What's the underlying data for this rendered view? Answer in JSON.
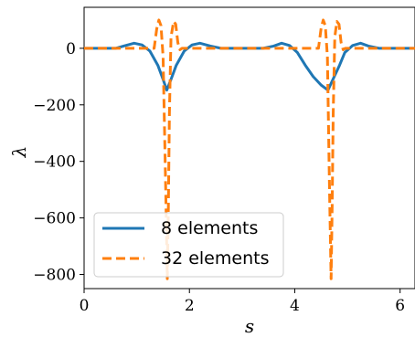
{
  "chart_data": {
    "type": "line",
    "xlabel": "s",
    "ylabel": "λ",
    "xlim": [
      0,
      6.283
    ],
    "ylim": [
      -850,
      145
    ],
    "x_ticks": [
      0,
      2,
      4,
      6
    ],
    "x_tick_labels": [
      "0",
      "2",
      "4",
      "6"
    ],
    "y_ticks": [
      0,
      -200,
      -400,
      -600,
      -800
    ],
    "y_tick_labels": [
      "0",
      "−200",
      "−400",
      "−600",
      "−800"
    ],
    "grid": false,
    "legend_position": "lower-left",
    "series": [
      {
        "name": "8 elements",
        "color": "#1f77b4",
        "style": "solid",
        "x": [
          0,
          0.6,
          0.75,
          0.95,
          1.1,
          1.25,
          1.4,
          1.5,
          1.57,
          1.65,
          1.75,
          1.9,
          2.05,
          2.2,
          2.4,
          2.6,
          3.0,
          3.4,
          3.6,
          3.75,
          3.9,
          4.05,
          4.2,
          4.35,
          4.5,
          4.63,
          4.75,
          4.85,
          4.95,
          5.1,
          5.25,
          5.4,
          5.6,
          6.283
        ],
        "y": [
          0,
          0,
          8,
          18,
          12,
          -10,
          -60,
          -110,
          -148,
          -110,
          -60,
          -10,
          12,
          18,
          8,
          0,
          0,
          0,
          8,
          18,
          10,
          -15,
          -60,
          -100,
          -130,
          -148,
          -100,
          -60,
          -15,
          10,
          18,
          8,
          0,
          0
        ]
      },
      {
        "name": "32 elements",
        "color": "#ff7f0e",
        "style": "dashed",
        "x": [
          0,
          1.33,
          1.38,
          1.42,
          1.46,
          1.5,
          1.55,
          1.58,
          1.6,
          1.62,
          1.65,
          1.7,
          1.74,
          1.78,
          1.82,
          1.86,
          3.0,
          4.45,
          4.5,
          4.54,
          4.58,
          4.62,
          4.66,
          4.69,
          4.71,
          4.73,
          4.76,
          4.8,
          4.84,
          4.88,
          4.92,
          4.96,
          6.283
        ],
        "y": [
          0,
          0,
          70,
          100,
          80,
          -30,
          -500,
          -815,
          -560,
          -230,
          40,
          95,
          85,
          20,
          -5,
          0,
          0,
          0,
          70,
          100,
          80,
          -30,
          -500,
          -815,
          -560,
          -230,
          40,
          95,
          85,
          20,
          -5,
          0,
          0
        ]
      }
    ]
  }
}
